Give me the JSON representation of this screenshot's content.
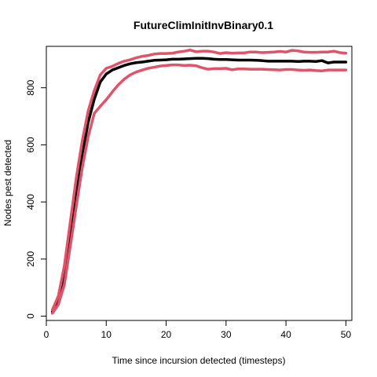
{
  "chart_data": {
    "type": "line",
    "title": "FutureClimInitInvBinary0.1",
    "xlabel": "Time since incursion detected (timesteps)",
    "ylabel": "Nodes pest detected",
    "xlim": [
      0,
      51
    ],
    "ylim": [
      -15,
      945
    ],
    "xticks": [
      0,
      10,
      20,
      30,
      40,
      50
    ],
    "yticks": [
      0,
      200,
      400,
      600,
      800
    ],
    "grid": false,
    "legend": "none",
    "x": [
      1,
      2,
      3,
      4,
      5,
      6,
      7,
      8,
      9,
      10,
      11,
      12,
      13,
      14,
      15,
      16,
      17,
      18,
      19,
      20,
      21,
      22,
      23,
      24,
      25,
      26,
      27,
      28,
      29,
      30,
      31,
      32,
      33,
      34,
      35,
      36,
      37,
      38,
      39,
      40,
      41,
      42,
      43,
      44,
      45,
      46,
      47,
      48,
      49,
      50
    ],
    "series": [
      {
        "color": "#000000",
        "values": [
          15,
          55,
          140,
          290,
          440,
          570,
          680,
          760,
          820,
          848,
          862,
          870,
          878,
          884,
          888,
          890,
          893,
          896,
          897,
          898,
          900,
          900,
          901,
          902,
          903,
          903,
          902,
          900,
          899,
          899,
          898,
          897,
          897,
          897,
          896,
          895,
          893,
          893,
          893,
          893,
          893,
          892,
          893,
          893,
          892,
          895,
          887,
          890,
          890,
          890
        ]
      },
      {
        "color": "#DF536B",
        "values": [
          22,
          70,
          175,
          330,
          485,
          615,
          720,
          790,
          845,
          868,
          875,
          885,
          893,
          898,
          905,
          910,
          913,
          918,
          920,
          920,
          921,
          925,
          928,
          932,
          926,
          928,
          928,
          925,
          920,
          923,
          921,
          922,
          922,
          925,
          925,
          923,
          924,
          925,
          927,
          925,
          931,
          929,
          925,
          924,
          924,
          925,
          925,
          928,
          923,
          921
        ]
      },
      {
        "color": "#DF536B",
        "values": [
          10,
          40,
          110,
          245,
          385,
          520,
          630,
          710,
          735,
          758,
          785,
          810,
          830,
          845,
          855,
          862,
          868,
          872,
          876,
          878,
          880,
          880,
          878,
          879,
          877,
          870,
          865,
          867,
          867,
          868,
          863,
          866,
          866,
          865,
          865,
          865,
          864,
          863,
          862,
          864,
          864,
          862,
          861,
          862,
          860,
          859,
          862,
          862,
          862,
          862
        ]
      }
    ]
  }
}
